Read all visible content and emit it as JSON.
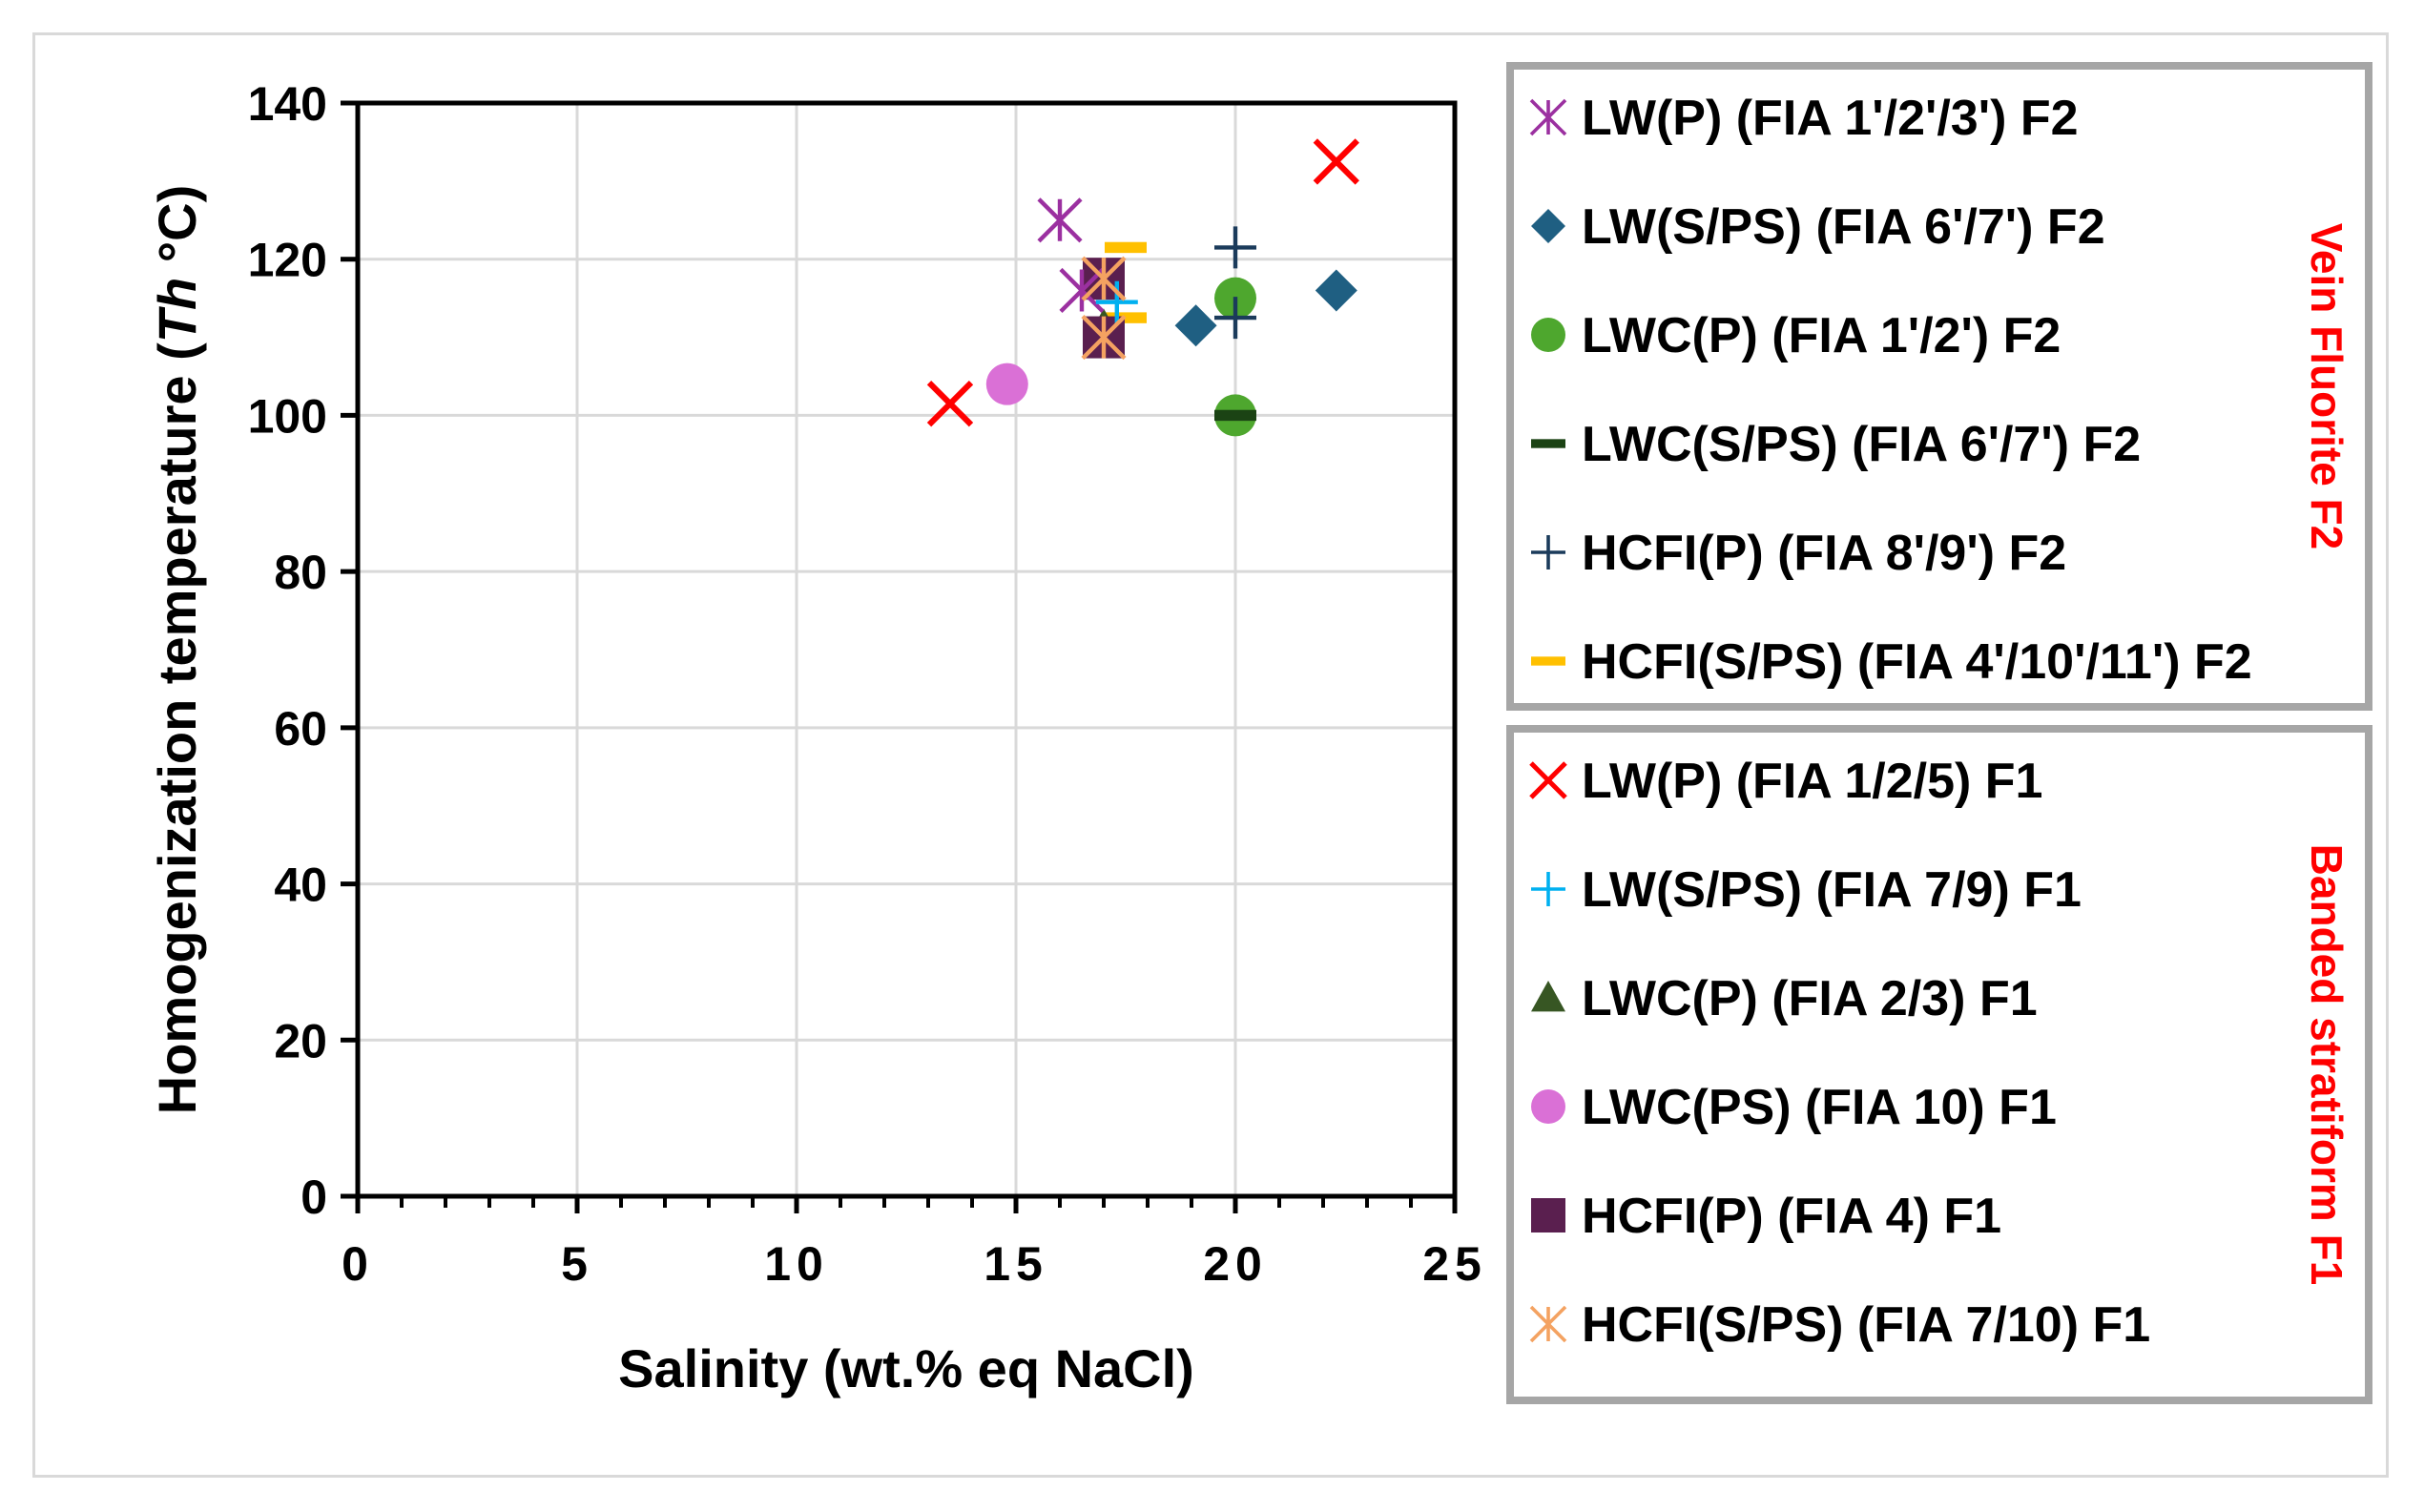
{
  "chart_data": {
    "type": "scatter",
    "xlabel": "Salinity (wt.% eq NaCl)",
    "ylabel_parts": [
      "Homogenization temperature (",
      "Th",
      " °C)"
    ],
    "xlim": [
      0,
      25
    ],
    "ylim": [
      0,
      140
    ],
    "x_ticks": [
      0,
      5,
      10,
      15,
      20,
      25
    ],
    "y_ticks": [
      0,
      20,
      40,
      60,
      80,
      100,
      120,
      140
    ],
    "grid": true,
    "legend_groups": [
      {
        "title": "Vein Fluorite F2",
        "title_color": "#ff0000",
        "series_indices": [
          0,
          1,
          2,
          3,
          4,
          5
        ]
      },
      {
        "title": "Banded stratiform F1",
        "title_color": "#ff0000",
        "series_indices": [
          6,
          7,
          8,
          9,
          10,
          11
        ]
      }
    ],
    "series": [
      {
        "name": "LW(P) (FIA 1'/2'/3') F2",
        "marker": "asterisk",
        "color": "#9b30a0",
        "points": [
          [
            16.0,
            125
          ],
          [
            16.5,
            116
          ]
        ]
      },
      {
        "name": "LW(S/PS) (FIA 6'/7') F2",
        "marker": "diamond",
        "color": "#1f5f82",
        "points": [
          [
            19.1,
            111.5
          ],
          [
            22.3,
            116
          ]
        ]
      },
      {
        "name": "LWC(P) (FIA 1'/2') F2",
        "marker": "circle",
        "color": "#4ea72e",
        "points": [
          [
            20.0,
            115
          ],
          [
            20.0,
            100
          ]
        ]
      },
      {
        "name": "LWC(S/PS) (FIA 6'/7') F2",
        "marker": "dash",
        "color": "#1b4314",
        "points": [
          [
            20.0,
            100
          ]
        ]
      },
      {
        "name": "HCFI(P) (FIA 8'/9') F2",
        "marker": "plus",
        "color": "#1b3b5b",
        "points": [
          [
            20.0,
            121.5
          ],
          [
            20.0,
            112.5
          ]
        ]
      },
      {
        "name": "HCFI(S/PS) (FIA 4'/10'/11') F2",
        "marker": "dash",
        "color": "#ffc000",
        "points": [
          [
            17.5,
            121.5
          ],
          [
            17.5,
            112.5
          ]
        ]
      },
      {
        "name": "LW(P) (FIA 1/2/5) F1",
        "marker": "x",
        "color": "#ff0000",
        "points": [
          [
            13.5,
            101.5
          ],
          [
            22.3,
            132.5
          ]
        ]
      },
      {
        "name": "LW(S/PS) (FIA 7/9) F1",
        "marker": "plus",
        "color": "#00b0f0",
        "points": [
          [
            17.3,
            114.5
          ]
        ]
      },
      {
        "name": "LWC(P) (FIA 2/3) F1",
        "marker": "triangle",
        "color": "#375623",
        "points": [
          [
            17.0,
            111
          ]
        ]
      },
      {
        "name": "LWC(PS) (FIA 10) F1",
        "marker": "circle",
        "color": "#da70d6",
        "points": [
          [
            14.8,
            104
          ]
        ]
      },
      {
        "name": "HCFI(P) (FIA 4) F1",
        "marker": "square",
        "color": "#5a1f4f",
        "points": [
          [
            17.0,
            117.5
          ],
          [
            17.0,
            110
          ]
        ]
      },
      {
        "name": "HCFI(S/PS) (FIA 7/10) F1",
        "marker": "asterisk",
        "color": "#f4a261",
        "points": [
          [
            17.0,
            117.5
          ],
          [
            17.0,
            110
          ]
        ]
      }
    ]
  }
}
